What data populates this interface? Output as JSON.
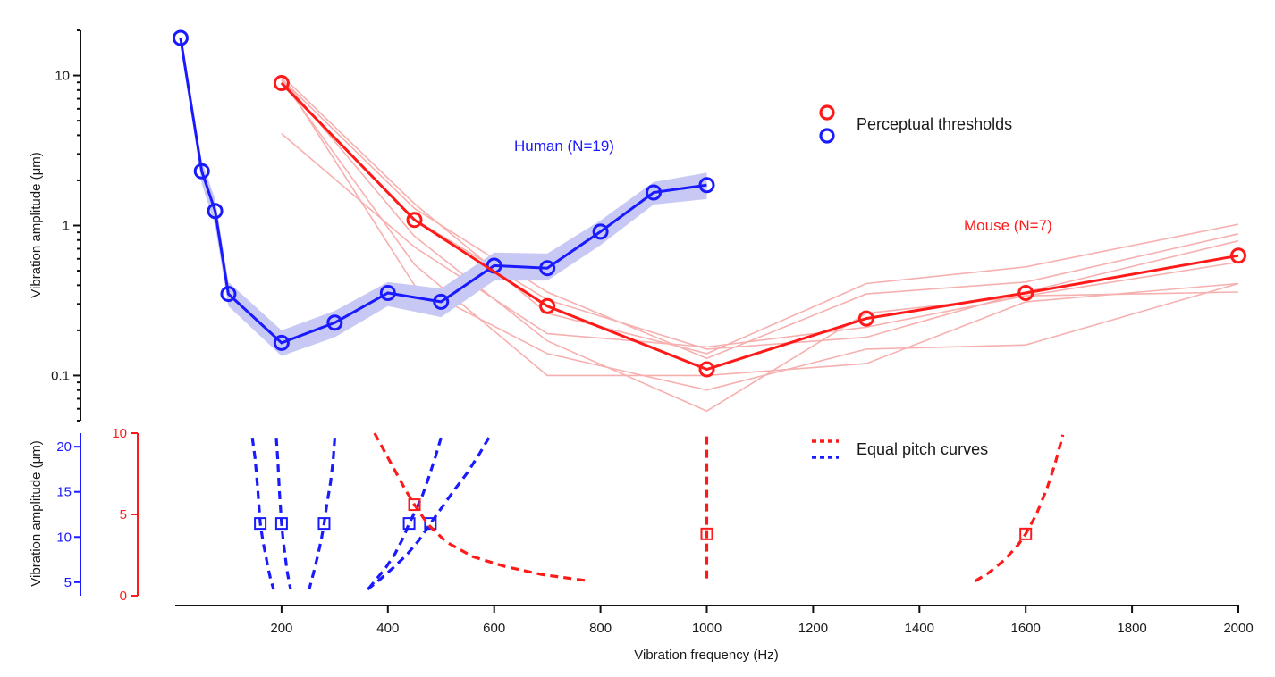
{
  "chart_data": {
    "type": "line",
    "colors": {
      "human": "#1a1aff",
      "human_band": "#c8c8f5",
      "mouse": "#ff1a1a",
      "mouse_individual": "#f7b0b0",
      "axis": "#111111"
    },
    "x_axis": {
      "label": "Vibration frequency (Hz)",
      "range": [
        0,
        2000
      ],
      "ticks": [
        200,
        400,
        600,
        800,
        1000,
        1200,
        1400,
        1600,
        1800,
        2000
      ],
      "tick_labels": [
        "200",
        "400",
        "600",
        "800",
        "1000",
        "1200",
        "1400",
        "1600",
        "1800",
        "2000"
      ]
    },
    "panels": [
      {
        "name": "perceptual-thresholds",
        "ylabel": "Vibration amplitude (μm)",
        "yscale": "log",
        "ylim": [
          0.05,
          20
        ],
        "y_ticks": [
          10,
          1,
          0.1
        ],
        "y_tick_labels": [
          "10",
          "1",
          "0.1"
        ],
        "legend": {
          "label": "Perceptual thresholds",
          "placement": "top-right",
          "markers": [
            "mouse",
            "human"
          ]
        },
        "annotations": [
          {
            "text": "Human (N=19)",
            "series": "human"
          },
          {
            "text": "Mouse (N=7)",
            "series": "mouse"
          }
        ],
        "series": [
          {
            "name": "Human (N=19)",
            "key": "human",
            "marker": "circle",
            "x": [
              10,
              50,
              75,
              100,
              200,
              300,
              400,
              500,
              600,
              700,
              800,
              900,
              1000
            ],
            "y": [
              17.8,
              2.3,
              1.25,
              0.35,
              0.165,
              0.225,
              0.355,
              0.31,
              0.54,
              0.52,
              0.91,
              1.66,
              1.86
            ],
            "band_lower": [
              17.8,
              1.9,
              1.0,
              0.29,
              0.135,
              0.18,
              0.29,
              0.245,
              0.43,
              0.43,
              0.74,
              1.38,
              1.5
            ],
            "band_upper": [
              17.8,
              2.7,
              1.5,
              0.42,
              0.2,
              0.27,
              0.42,
              0.38,
              0.66,
              0.65,
              1.08,
              1.95,
              2.25
            ]
          },
          {
            "name": "Mouse (N=7)",
            "key": "mouse",
            "marker": "circle",
            "x": [
              200,
              450,
              700,
              1000,
              1300,
              1600,
              2000
            ],
            "y": [
              8.9,
              1.09,
              0.29,
              0.11,
              0.24,
              0.355,
              0.63
            ]
          }
        ],
        "individual_mice": {
          "x": [
            200,
            450,
            700,
            1000,
            1300,
            1600,
            2000
          ],
          "lines": [
            [
              10.0,
              1.4,
              0.26,
              0.14,
              0.41,
              0.53,
              1.02
            ],
            [
              9.5,
              1.3,
              0.36,
              0.13,
              0.35,
              0.42,
              0.88
            ],
            [
              9.0,
              1.1,
              0.32,
              0.15,
              0.18,
              0.36,
              0.79
            ],
            [
              4.1,
              0.72,
              0.19,
              0.155,
              0.21,
              0.34,
              0.57
            ],
            [
              9.3,
              0.55,
              0.1,
              0.1,
              0.12,
              0.31,
              0.41
            ],
            [
              9.8,
              0.4,
              0.14,
              0.08,
              0.15,
              0.16,
              0.41
            ],
            [
              9.6,
              0.85,
              0.17,
              0.058,
              0.26,
              0.34,
              0.36
            ]
          ]
        }
      },
      {
        "name": "equal-pitch-curves",
        "ylabel": "Vibration amplitude (μm)",
        "y_axes": [
          {
            "key": "human",
            "range": [
              3.5,
              21.5
            ],
            "ticks": [
              5,
              10,
              15,
              20
            ],
            "tick_labels": [
              "5",
              "10",
              "15",
              "20"
            ]
          },
          {
            "key": "mouse",
            "range": [
              0,
              10
            ],
            "ticks": [
              0,
              5,
              10
            ],
            "tick_labels": [
              "0",
              "5",
              "10"
            ]
          }
        ],
        "legend": {
          "label": "Equal pitch curves",
          "placement": "top-right",
          "styles": [
            "mouse-dashed",
            "human-dashed"
          ]
        },
        "human_curves": [
          {
            "ref": {
              "x": 160,
              "y": 11.5
            },
            "x": [
              145,
              150,
              155,
              160,
              165,
              170,
              175,
              180,
              185
            ],
            "y": [
              21.0,
              18.8,
              15.5,
              11.5,
              9.5,
              8.0,
              6.5,
              5.2,
              4.2
            ]
          },
          {
            "ref": {
              "x": 200,
              "y": 11.5
            },
            "x": [
              190,
              193,
              196,
              200,
              203,
              207,
              210,
              214,
              217
            ],
            "y": [
              21.0,
              18.5,
              15.0,
              11.5,
              9.6,
              7.8,
              6.4,
              5.1,
              4.2
            ]
          },
          {
            "ref": {
              "x": 280,
              "y": 11.5
            },
            "x": [
              300,
              297,
              292,
              285,
              280,
              275,
              268,
              260,
              252
            ],
            "y": [
              21.0,
              18.5,
              16.0,
              13.5,
              11.5,
              9.8,
              7.9,
              6.0,
              4.2
            ]
          },
          {
            "ref": {
              "x": 440,
              "y": 11.5
            },
            "x": [
              500,
              490,
              478,
              465,
              452,
              440,
              428,
              413,
              396,
              378,
              360
            ],
            "y": [
              21.0,
              19.0,
              16.8,
              14.6,
              12.9,
              11.5,
              9.8,
              8.1,
              6.6,
              5.3,
              4.0
            ]
          },
          {
            "ref": {
              "x": 480,
              "y": 11.5
            },
            "x": [
              590,
              570,
              548,
              525,
              502,
              480,
              458,
              435,
              410,
              385,
              362
            ],
            "y": [
              21.0,
              19.0,
              17.0,
              15.2,
              13.3,
              11.5,
              9.6,
              8.0,
              6.6,
              5.3,
              4.2
            ]
          }
        ],
        "mouse_curves": [
          {
            "ref": {
              "x": 450,
              "y": 5.6
            },
            "x": [
              375,
              395,
              415,
              435,
              450,
              475,
              510,
              560,
              620,
              690,
              780
            ],
            "y": [
              10.0,
              8.8,
              7.6,
              6.4,
              5.6,
              4.4,
              3.3,
              2.4,
              1.8,
              1.3,
              0.9
            ]
          },
          {
            "ref": {
              "x": 1000,
              "y": 3.8
            },
            "x": [
              1000,
              1000,
              1000,
              1000,
              1000
            ],
            "y": [
              9.8,
              7.0,
              3.8,
              2.0,
              0.9
            ]
          },
          {
            "ref": {
              "x": 1600,
              "y": 3.8
            },
            "x": [
              1505,
              1530,
              1560,
              1585,
              1600,
              1620,
              1640,
              1655,
              1670
            ],
            "y": [
              0.9,
              1.4,
              2.2,
              3.1,
              3.8,
              5.0,
              6.6,
              8.1,
              9.9
            ]
          }
        ]
      }
    ]
  }
}
